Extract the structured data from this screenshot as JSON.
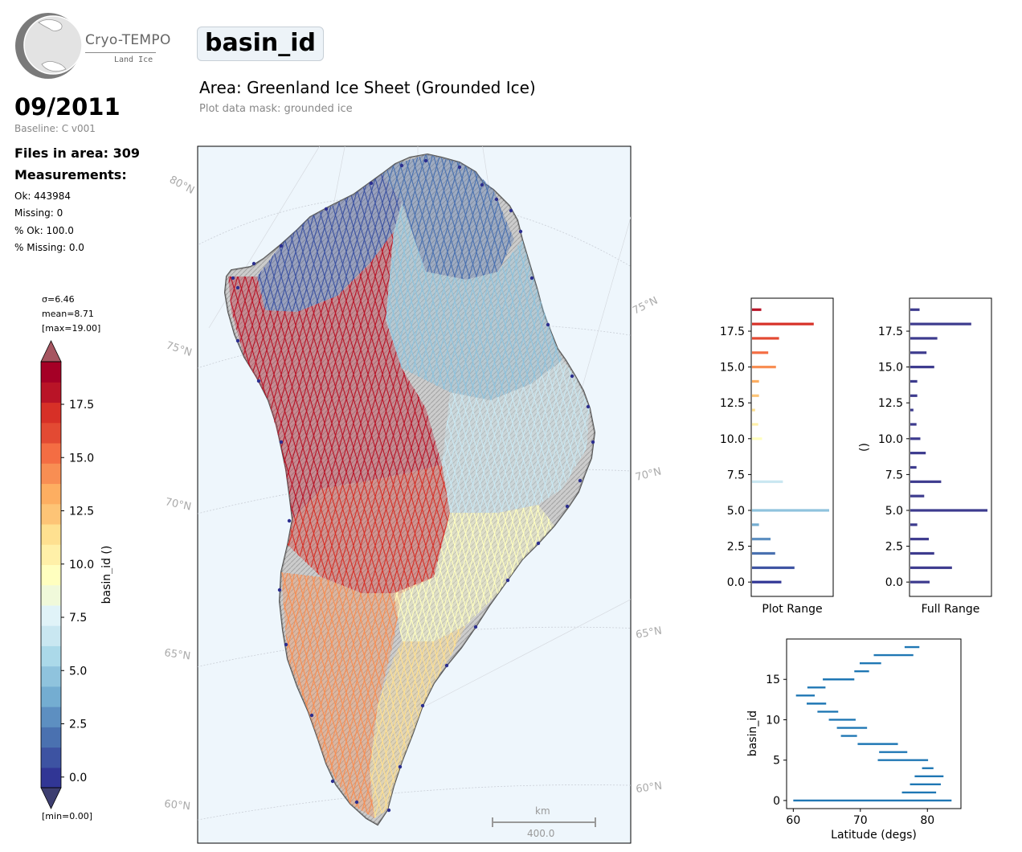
{
  "logo": {
    "title": "Cryo-TEMPO",
    "subtitle": "Land Ice"
  },
  "header": {
    "parameter": "basin_id",
    "area": "Area: Greenland Ice Sheet (Grounded Ice)",
    "mask_note": "Plot data mask: grounded ice"
  },
  "info": {
    "date": "09/2011",
    "baseline": "Baseline: C v001",
    "files": "Files in area: 309",
    "measurements_title": "Measurements:",
    "ok": "Ok: 443984",
    "missing": "Missing: 0",
    "pct_ok": "% Ok: 100.0",
    "pct_missing": "% Missing: 0.0"
  },
  "colorbar": {
    "sigma": "σ=6.46",
    "mean": "mean=8.71",
    "max": "[max=19.00]",
    "min": "[min=0.00]",
    "label": "basin_id ()",
    "ticks": [
      "0.0",
      "2.5",
      "5.0",
      "7.5",
      "10.0",
      "12.5",
      "15.0",
      "17.5"
    ],
    "tick_values": [
      0,
      2.5,
      5,
      7.5,
      10,
      12.5,
      15,
      17.5
    ],
    "range": [
      -0.5,
      19.5
    ],
    "colors": [
      "#313695",
      "#3d53a2",
      "#4a71b0",
      "#5d8fc1",
      "#74add1",
      "#8fc3dd",
      "#abd9e9",
      "#c9e7f1",
      "#e0f3f8",
      "#f0f9da",
      "#ffffbf",
      "#fff0a8",
      "#fee090",
      "#fdc476",
      "#fdae61",
      "#f88e53",
      "#f46d43",
      "#e34a33",
      "#d73027",
      "#b91427",
      "#a50026"
    ]
  },
  "map": {
    "lat_labels_left": [
      "80°N",
      "75°N",
      "70°N",
      "65°N",
      "60°N"
    ],
    "lat_labels_right": [
      "75°N",
      "70°N",
      "65°N",
      "60°N"
    ],
    "scalebar_unit": "km",
    "scalebar_value": "400.0"
  },
  "chart_data": [
    {
      "type": "bar",
      "orientation": "horizontal",
      "xlabel": "Plot Range",
      "ylabel": "",
      "ylim": [
        -1,
        19.8
      ],
      "yticks": [
        "0.0",
        "2.5",
        "5.0",
        "7.5",
        "10.0",
        "12.5",
        "15.0",
        "17.5"
      ],
      "categories": [
        0,
        1,
        2,
        3,
        4,
        5,
        6,
        7,
        8,
        9,
        10,
        11,
        12,
        13,
        14,
        15,
        16,
        17,
        18,
        19
      ],
      "values": [
        38,
        55,
        30,
        24,
        9,
        100,
        0,
        40,
        0,
        0,
        13,
        8,
        4,
        9,
        9,
        31,
        21,
        35,
        80,
        12
      ]
    },
    {
      "type": "bar",
      "orientation": "horizontal",
      "xlabel": "Full Range",
      "ylabel": "()",
      "ylim": [
        -1,
        19.8
      ],
      "yticks": [
        "0.0",
        "2.5",
        "5.0",
        "7.5",
        "10.0",
        "12.5",
        "15.0",
        "17.5"
      ],
      "categories": [
        0,
        1,
        2,
        3,
        4,
        5,
        6,
        7,
        8,
        9,
        10,
        11,
        12,
        13,
        14,
        15,
        16,
        17,
        18,
        19
      ],
      "values": [
        25,
        54,
        31,
        24,
        9,
        100,
        18,
        40,
        8,
        20,
        13,
        8,
        4,
        9,
        9,
        31,
        21,
        35,
        79,
        12
      ]
    },
    {
      "type": "range",
      "xlabel": "Latitude (degs)",
      "ylabel": "basin_id",
      "xlim": [
        59,
        85
      ],
      "ylim": [
        -1,
        20
      ],
      "xticks": [
        "60",
        "70",
        "80"
      ],
      "yticks": [
        "0",
        "5",
        "10",
        "15"
      ],
      "ranges": [
        {
          "id": 0,
          "lat_min": 60.0,
          "lat_max": 83.6
        },
        {
          "id": 1,
          "lat_min": 76.2,
          "lat_max": 81.3
        },
        {
          "id": 2,
          "lat_min": 77.4,
          "lat_max": 82.0
        },
        {
          "id": 3,
          "lat_min": 78.1,
          "lat_max": 82.4
        },
        {
          "id": 4,
          "lat_min": 79.2,
          "lat_max": 80.9
        },
        {
          "id": 5,
          "lat_min": 72.6,
          "lat_max": 80.1
        },
        {
          "id": 6,
          "lat_min": 72.8,
          "lat_max": 77.0
        },
        {
          "id": 7,
          "lat_min": 69.6,
          "lat_max": 75.6
        },
        {
          "id": 8,
          "lat_min": 67.1,
          "lat_max": 69.5
        },
        {
          "id": 9,
          "lat_min": 66.5,
          "lat_max": 71.0
        },
        {
          "id": 10,
          "lat_min": 65.3,
          "lat_max": 69.3
        },
        {
          "id": 11,
          "lat_min": 63.6,
          "lat_max": 66.7
        },
        {
          "id": 12,
          "lat_min": 62.0,
          "lat_max": 64.9
        },
        {
          "id": 13,
          "lat_min": 60.4,
          "lat_max": 63.2
        },
        {
          "id": 14,
          "lat_min": 62.1,
          "lat_max": 64.8
        },
        {
          "id": 15,
          "lat_min": 64.4,
          "lat_max": 69.1
        },
        {
          "id": 16,
          "lat_min": 69.1,
          "lat_max": 71.3
        },
        {
          "id": 17,
          "lat_min": 69.9,
          "lat_max": 73.1
        },
        {
          "id": 18,
          "lat_min": 72.0,
          "lat_max": 77.9
        },
        {
          "id": 19,
          "lat_min": 76.6,
          "lat_max": 78.8
        }
      ]
    }
  ]
}
